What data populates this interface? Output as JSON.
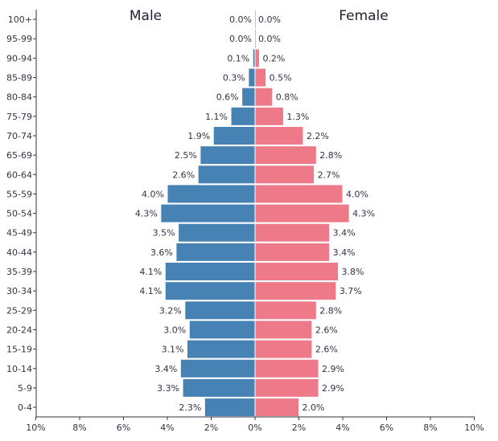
{
  "chart_data": {
    "type": "bar",
    "orientation": "horizontal-population-pyramid",
    "categories": [
      "100+",
      "95-99",
      "90-94",
      "85-89",
      "80-84",
      "75-79",
      "70-74",
      "65-69",
      "60-64",
      "55-59",
      "50-54",
      "45-49",
      "40-44",
      "35-39",
      "30-34",
      "25-29",
      "20-24",
      "15-19",
      "10-14",
      "5-9",
      "0-4"
    ],
    "series": [
      {
        "name": "Male",
        "color": "#4682b4",
        "values": [
          0.0,
          0.0,
          0.1,
          0.3,
          0.6,
          1.1,
          1.9,
          2.5,
          2.6,
          4.0,
          4.3,
          3.5,
          3.6,
          4.1,
          4.1,
          3.2,
          3.0,
          3.1,
          3.4,
          3.3,
          2.3
        ],
        "labels": [
          "0.0%",
          "0.0%",
          "0.1%",
          "0.3%",
          "0.6%",
          "1.1%",
          "1.9%",
          "2.5%",
          "2.6%",
          "4.0%",
          "4.3%",
          "3.5%",
          "3.6%",
          "4.1%",
          "4.1%",
          "3.2%",
          "3.0%",
          "3.1%",
          "3.4%",
          "3.3%",
          "2.3%"
        ]
      },
      {
        "name": "Female",
        "color": "#ee7989",
        "values": [
          0.0,
          0.0,
          0.2,
          0.5,
          0.8,
          1.3,
          2.2,
          2.8,
          2.7,
          4.0,
          4.3,
          3.4,
          3.4,
          3.8,
          3.7,
          2.8,
          2.6,
          2.6,
          2.9,
          2.9,
          2.0
        ],
        "labels": [
          "0.0%",
          "0.0%",
          "0.2%",
          "0.5%",
          "0.8%",
          "1.3%",
          "2.2%",
          "2.8%",
          "2.7%",
          "4.0%",
          "4.3%",
          "3.4%",
          "3.4%",
          "3.8%",
          "3.7%",
          "2.8%",
          "2.6%",
          "2.6%",
          "2.9%",
          "2.9%",
          "2.0%"
        ]
      }
    ],
    "xticks": [
      "10%",
      "8%",
      "6%",
      "4%",
      "2%",
      "0%",
      "2%",
      "4%",
      "6%",
      "8%",
      "10%"
    ],
    "xtick_values": [
      -10,
      -8,
      -6,
      -4,
      -2,
      0,
      2,
      4,
      6,
      8,
      10
    ],
    "xlim": [
      -10,
      10
    ],
    "title_left": "Male",
    "title_right": "Female",
    "grid": false
  }
}
